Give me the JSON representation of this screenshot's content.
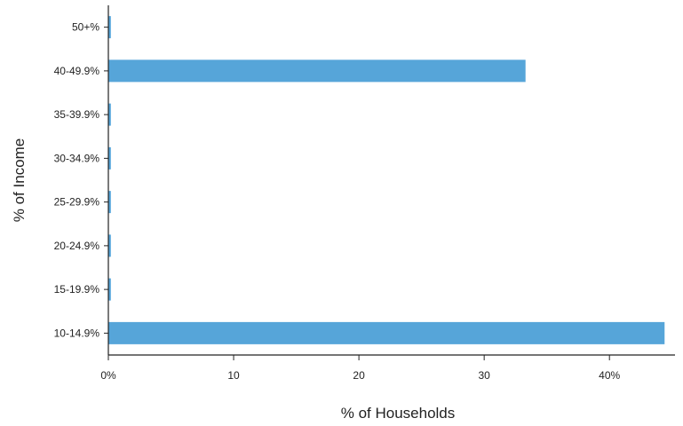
{
  "chart_data": {
    "type": "bar",
    "orientation": "horizontal",
    "categories": [
      "10-14.9%",
      "15-19.9%",
      "20-24.9%",
      "25-29.9%",
      "30-34.9%",
      "35-39.9%",
      "40-49.9%",
      "50+%"
    ],
    "values": [
      44.4,
      0.2,
      0.2,
      0.2,
      0.2,
      0.2,
      33.3,
      0.2
    ],
    "xlabel": "% of Households",
    "ylabel": "% of Income",
    "xlim": [
      0,
      45
    ],
    "x_ticks": [
      {
        "value": 0,
        "label": "0%"
      },
      {
        "value": 10,
        "label": "10"
      },
      {
        "value": 20,
        "label": "20"
      },
      {
        "value": 30,
        "label": "30"
      },
      {
        "value": 40,
        "label": "40%"
      }
    ],
    "bar_color": "#56a5d9",
    "grid": false,
    "legend": "none"
  }
}
